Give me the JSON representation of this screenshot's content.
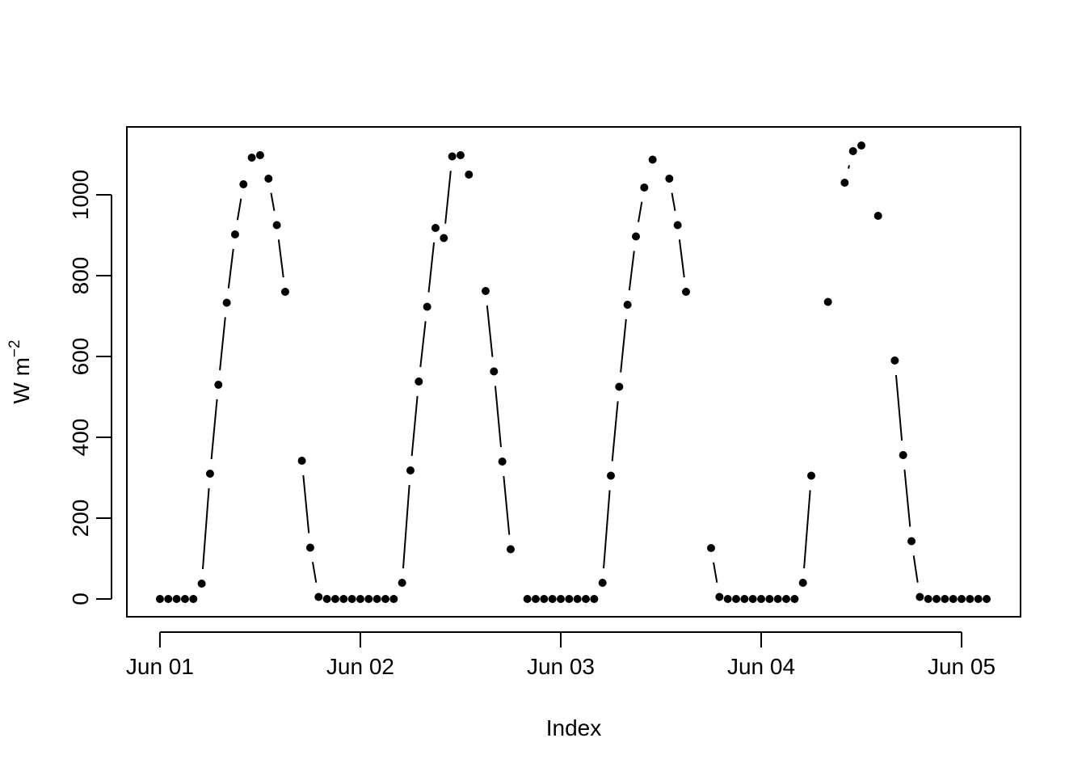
{
  "chart_data": {
    "type": "line",
    "x_label": "Index",
    "y_label": {
      "base": "W m",
      "superscript": "−2"
    },
    "color": "#000000",
    "x": [
      0,
      1,
      2,
      3,
      4,
      5,
      6,
      7,
      8,
      9,
      10,
      11,
      12,
      13,
      14,
      15,
      16,
      17,
      18,
      19,
      20,
      21,
      22,
      23,
      24,
      25,
      26,
      27,
      28,
      29,
      30,
      31,
      32,
      33,
      34,
      35,
      36,
      37,
      38,
      39,
      40,
      41,
      42,
      43,
      44,
      45,
      46,
      47,
      48,
      49,
      50,
      51,
      52,
      53,
      54,
      55,
      56,
      57,
      58,
      59,
      60,
      61,
      62,
      63,
      64,
      65,
      66,
      67,
      68,
      69,
      70,
      71,
      72,
      73,
      74,
      75,
      76,
      77,
      78,
      79,
      80,
      81,
      82,
      83,
      84,
      85,
      86,
      87,
      88,
      89,
      90,
      91,
      92,
      93,
      94,
      95,
      96,
      97,
      98,
      99
    ],
    "values": [
      0,
      0,
      0,
      0,
      0,
      38,
      310,
      530,
      733,
      902,
      1026,
      1092,
      1098,
      1040,
      925,
      760,
      null,
      342,
      127,
      5,
      0,
      0,
      0,
      0,
      0,
      0,
      0,
      0,
      0,
      40,
      318,
      538,
      723,
      918,
      893,
      1095,
      1098,
      1050,
      null,
      762,
      563,
      340,
      123,
      null,
      0,
      0,
      0,
      0,
      0,
      0,
      0,
      0,
      0,
      40,
      305,
      525,
      728,
      897,
      1018,
      1087,
      null,
      1040,
      925,
      760,
      null,
      null,
      126,
      5,
      0,
      0,
      0,
      0,
      0,
      0,
      0,
      0,
      0,
      40,
      305,
      null,
      735,
      null,
      1030,
      1108,
      1122,
      null,
      948,
      null,
      590,
      356,
      143,
      5,
      0,
      0,
      0,
      0,
      0,
      0,
      0,
      0
    ],
    "xlim": [
      -3.96,
      103.06
    ],
    "xticks": [
      {
        "value": 0,
        "label": "Jun 01"
      },
      {
        "value": 24,
        "label": "Jun 02"
      },
      {
        "value": 48,
        "label": "Jun 03"
      },
      {
        "value": 72,
        "label": "Jun 04"
      },
      {
        "value": 96,
        "label": "Jun 05"
      }
    ],
    "ylim": [
      -44,
      1168
    ],
    "yticks": [
      0,
      200,
      400,
      600,
      800,
      1000
    ]
  }
}
